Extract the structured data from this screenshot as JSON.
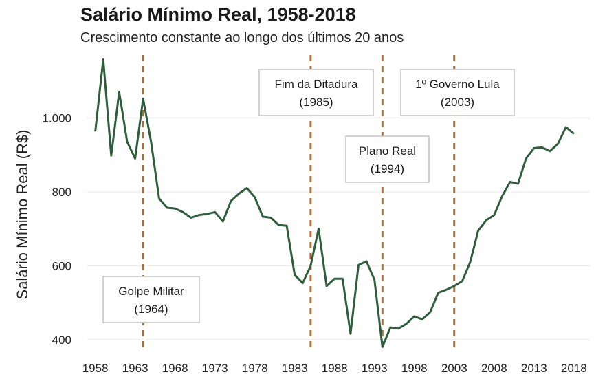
{
  "chart_data": {
    "type": "line",
    "title": "Salário Mínimo Real, 1958-2018",
    "subtitle": "Crescimento constante ao longo dos últimos 20 anos",
    "xlabel": "",
    "ylabel": "Salário Mínimo Real (R$)",
    "xlim": [
      1957,
      2020
    ],
    "ylim": [
      370,
      1170
    ],
    "x_ticks": [
      1958,
      1963,
      1968,
      1973,
      1978,
      1983,
      1988,
      1993,
      1998,
      2003,
      2008,
      2013,
      2018
    ],
    "x_tick_labels": [
      "1958",
      "1963",
      "1968",
      "1973",
      "1978",
      "1983",
      "1988",
      "1993",
      "1998",
      "2003",
      "2008",
      "2013",
      "2018"
    ],
    "y_ticks": [
      400,
      600,
      800,
      1000
    ],
    "y_tick_labels": [
      "400",
      "600",
      "800",
      "1.000"
    ],
    "grid": "horizontal",
    "line_color": "#2f5e3c",
    "vline_color": "#a8703a",
    "series": [
      {
        "x": [
          1958,
          1959,
          1960,
          1961,
          1962,
          1963,
          1964,
          1965,
          1966,
          1967,
          1968,
          1969,
          1970,
          1971,
          1972,
          1973,
          1974,
          1975,
          1976,
          1977,
          1978,
          1979,
          1980,
          1981,
          1982,
          1983,
          1984,
          1985,
          1986,
          1987,
          1988,
          1989,
          1990,
          1991,
          1992,
          1993,
          1994,
          1995,
          1996,
          1997,
          1998,
          1999,
          2000,
          2001,
          2002,
          2003,
          2004,
          2005,
          2006,
          2007,
          2008,
          2009,
          2010,
          2011,
          2012,
          2013,
          2014,
          2015,
          2016,
          2017,
          2018
        ],
        "values": [
          963,
          1158,
          898,
          1070,
          935,
          890,
          1052,
          935,
          782,
          757,
          755,
          745,
          730,
          737,
          740,
          745,
          720,
          775,
          795,
          810,
          785,
          733,
          730,
          710,
          708,
          575,
          553,
          600,
          700,
          545,
          565,
          565,
          416,
          602,
          612,
          562,
          380,
          433,
          430,
          443,
          463,
          455,
          475,
          527,
          535,
          545,
          558,
          610,
          695,
          723,
          737,
          788,
          827,
          822,
          890,
          918,
          920,
          910,
          930,
          975,
          957
        ]
      }
    ],
    "annotations": [
      {
        "year": 1964,
        "line1": "Golpe Militar",
        "line2": "(1964)"
      },
      {
        "year": 1985,
        "line1": "Fim da Ditadura",
        "line2": "(1985)"
      },
      {
        "year": 1994,
        "line1": "Plano Real",
        "line2": "(1994)"
      },
      {
        "year": 2003,
        "line1": "1º Governo Lula",
        "line2": "(2003)"
      }
    ]
  }
}
